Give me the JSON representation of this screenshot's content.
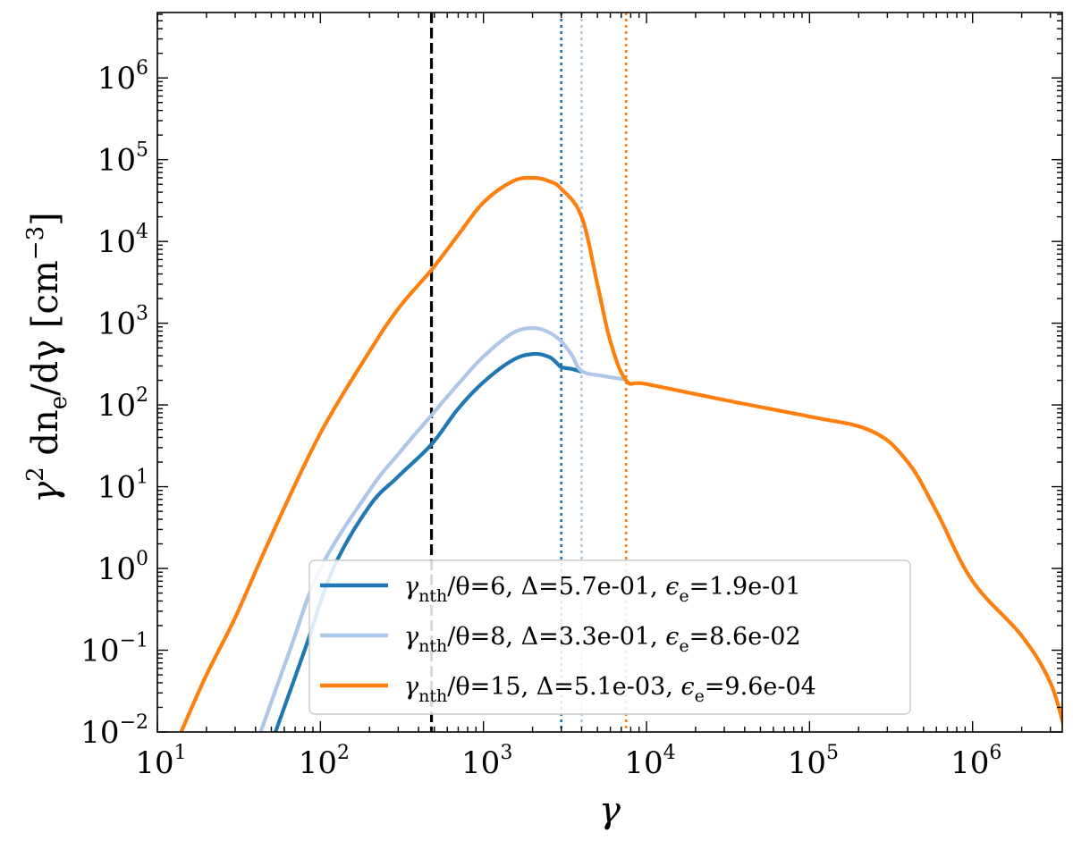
{
  "chart_data": {
    "type": "line",
    "xscale": "log",
    "yscale": "log",
    "xlim_log10": [
      1,
      6.55
    ],
    "ylim_log10": [
      -2,
      6.8
    ],
    "xlabel": "γ",
    "ylabel": "γ² dnₑ/dγ [cm⁻³]",
    "ylabel_parts": {
      "main": "γ",
      "sup1": "2",
      "mid": " dn",
      "sub": "e",
      "tail": "/dγ [cm",
      "sup2": "−3",
      "end": "]"
    },
    "x_ticks": [
      {
        "base": "10",
        "exp": "1"
      },
      {
        "base": "10",
        "exp": "2"
      },
      {
        "base": "10",
        "exp": "3"
      },
      {
        "base": "10",
        "exp": "4"
      },
      {
        "base": "10",
        "exp": "5"
      },
      {
        "base": "10",
        "exp": "6"
      }
    ],
    "y_ticks": [
      {
        "base": "10",
        "exp": "−2"
      },
      {
        "base": "10",
        "exp": "−1"
      },
      {
        "base": "10",
        "exp": "0"
      },
      {
        "base": "10",
        "exp": "1"
      },
      {
        "base": "10",
        "exp": "2"
      },
      {
        "base": "10",
        "exp": "3"
      },
      {
        "base": "10",
        "exp": "4"
      },
      {
        "base": "10",
        "exp": "5"
      },
      {
        "base": "10",
        "exp": "6"
      }
    ],
    "vlines": [
      {
        "x": 480,
        "color": "#000000",
        "style": "dashed"
      },
      {
        "x": 3000,
        "color": "#1f77b4",
        "style": "dotted"
      },
      {
        "x": 4000,
        "color": "#aec7e8",
        "style": "dotted"
      },
      {
        "x": 7500,
        "color": "#ff7f0e",
        "style": "dotted"
      }
    ],
    "legend_position": "lower-center",
    "series": [
      {
        "name": "γnth/θ=6, Δ=5.7e-01, εe=1.9e-01",
        "color": "#1f77b4",
        "legend": {
          "sym": "γ",
          "sub": "nth",
          "rest": "/θ=6, Δ=5.7e-01, ",
          "eps": "ϵ",
          "eps_sub": "e",
          "val": "=1.9e-01"
        },
        "points": [
          [
            53,
            0.01
          ],
          [
            80,
            0.1
          ],
          [
            120,
            1.0
          ],
          [
            200,
            5.8
          ],
          [
            300,
            13.3
          ],
          [
            480,
            33
          ],
          [
            700,
            90
          ],
          [
            1000,
            190
          ],
          [
            1500,
            350
          ],
          [
            2000,
            420
          ],
          [
            2500,
            390
          ],
          [
            2800,
            330
          ],
          [
            3000,
            290
          ],
          [
            3500,
            275
          ],
          [
            4000,
            255
          ]
        ]
      },
      {
        "name": "γnth/θ=8, Δ=3.3e-01, εe=8.6e-02",
        "color": "#aec7e8",
        "legend": {
          "sym": "γ",
          "sub": "nth",
          "rest": "/θ=8, Δ=3.3e-01, ",
          "eps": "ϵ",
          "eps_sub": "e",
          "val": "=8.6e-02"
        },
        "points": [
          [
            43,
            0.01
          ],
          [
            65,
            0.1
          ],
          [
            100,
            1.0
          ],
          [
            200,
            9
          ],
          [
            300,
            25
          ],
          [
            480,
            75
          ],
          [
            700,
            180
          ],
          [
            1000,
            390
          ],
          [
            1500,
            750
          ],
          [
            2000,
            870
          ],
          [
            2500,
            780
          ],
          [
            3000,
            600
          ],
          [
            3500,
            400
          ],
          [
            4000,
            260
          ],
          [
            5500,
            225
          ],
          [
            7500,
            205
          ]
        ]
      },
      {
        "name": "γnth/θ=15, Δ=5.1e-03, εe=9.6e-04",
        "color": "#ff7f0e",
        "legend": {
          "sym": "γ",
          "sub": "nth",
          "rest": "/θ=15, Δ=5.1e-03, ",
          "eps": "ϵ",
          "eps_sub": "e",
          "val": "=9.6e-04"
        },
        "points": [
          [
            14,
            0.01
          ],
          [
            20,
            0.05
          ],
          [
            30,
            0.25
          ],
          [
            50,
            2.5
          ],
          [
            100,
            45
          ],
          [
            200,
            450
          ],
          [
            300,
            1500
          ],
          [
            480,
            4500
          ],
          [
            700,
            12000
          ],
          [
            1000,
            30000
          ],
          [
            1500,
            54000
          ],
          [
            2000,
            60000
          ],
          [
            2500,
            55000
          ],
          [
            3000,
            44000
          ],
          [
            4000,
            20000
          ],
          [
            5000,
            3000
          ],
          [
            6000,
            600
          ],
          [
            7500,
            200
          ],
          [
            10000,
            180
          ],
          [
            30000,
            115
          ],
          [
            100000,
            72
          ],
          [
            240000,
            48
          ],
          [
            400000,
            20
          ],
          [
            600000,
            5
          ],
          [
            1000000,
            0.7
          ],
          [
            2000000,
            0.15
          ],
          [
            3000000,
            0.04
          ],
          [
            3700000,
            0.01
          ]
        ]
      }
    ]
  }
}
